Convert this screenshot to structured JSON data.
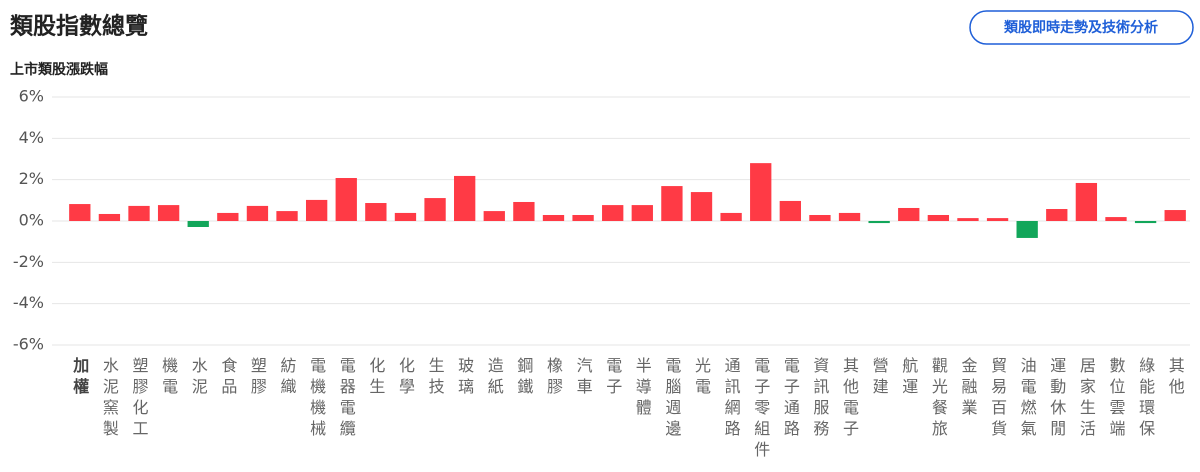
{
  "button": {
    "label": "類股即時走勢及技術分析"
  },
  "chart_data": {
    "type": "bar",
    "title": "類股指數總覽",
    "subtitle": "上市類股漲跌幅",
    "categories": [
      "加權",
      "水泥窯製",
      "塑膠化工",
      "機電",
      "水泥",
      "食品",
      "塑膠",
      "紡織",
      "電機機械",
      "電器電纜",
      "化生",
      "化學",
      "生技",
      "玻璃",
      "造紙",
      "鋼鐵",
      "橡膠",
      "汽車",
      "電子",
      "半導體",
      "電腦週邊",
      "光電",
      "通訊網路",
      "電子零組件",
      "電子通路",
      "資訊服務",
      "其他電子",
      "營建",
      "航運",
      "觀光餐旅",
      "金融業",
      "貿易百貨",
      "油電燃氣",
      "運動休閒",
      "居家生活",
      "數位雲端",
      "綠能環保",
      "其他"
    ],
    "values": [
      0.82,
      0.34,
      0.73,
      0.77,
      -0.29,
      0.39,
      0.73,
      0.48,
      1.02,
      2.08,
      0.87,
      0.39,
      1.11,
      2.18,
      0.48,
      0.92,
      0.29,
      0.29,
      0.77,
      0.77,
      1.69,
      1.4,
      0.39,
      2.8,
      0.97,
      0.29,
      0.39,
      -0.1,
      0.63,
      0.29,
      0.14,
      0.14,
      -0.82,
      0.58,
      1.84,
      0.19,
      -0.1,
      0.53
    ],
    "positive_color": "#ff3a45",
    "negative_color": "#12a65a",
    "ylim": [
      -6,
      6
    ],
    "yticks": [
      {
        "value": 6,
        "label": "6%"
      },
      {
        "value": 4,
        "label": "4%"
      },
      {
        "value": 2,
        "label": "2%"
      },
      {
        "value": 0,
        "label": "0%"
      },
      {
        "value": -2,
        "label": "-2%"
      },
      {
        "value": -4,
        "label": "-4%"
      },
      {
        "value": -6,
        "label": "-6%"
      }
    ],
    "grid": true
  }
}
